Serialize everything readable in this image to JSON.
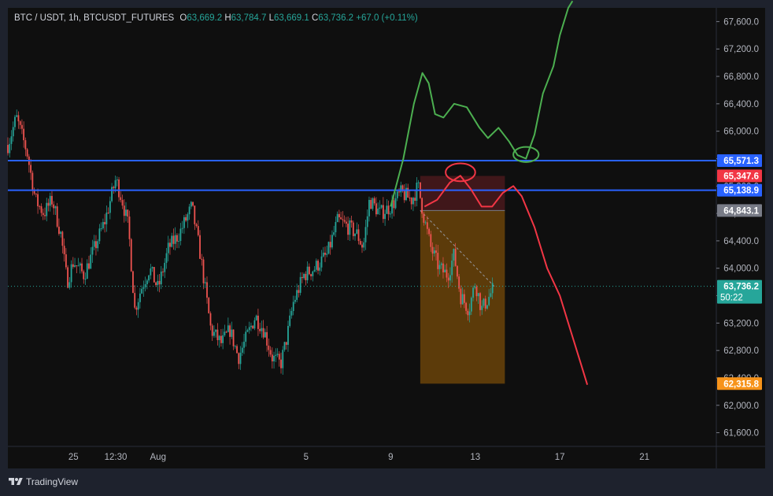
{
  "legend": {
    "symbol": "BTC / USDT, 1h, BTCUSDT_FUTURES",
    "open_label": "O",
    "open": "63,669.2",
    "high_label": "H",
    "high": "63,784.7",
    "low_label": "L",
    "low": "63,669.1",
    "close_label": "C",
    "close": "63,736.2",
    "change": "+67.0 (+0.11%)"
  },
  "brand": "TradingView",
  "colors": {
    "up": "#26a69a",
    "down": "#ef5350",
    "level_line": "#2962ff",
    "bull_path": "#4caf50",
    "bear_path": "#f23645",
    "target_zone": "#ff9800",
    "stop_zone": "#f23645"
  },
  "chart_data": {
    "type": "candlestick",
    "ylim": [
      61400,
      67800
    ],
    "y_ticks": [
      61600,
      62000,
      62400,
      62800,
      63200,
      63600,
      64000,
      64400,
      64800,
      65200,
      65600,
      66000,
      66400,
      66800,
      67200,
      67600
    ],
    "y_tick_labels": [
      "61,600.0",
      "62,000.0",
      "62,400.0",
      "62,800.0",
      "63,200.0",
      "63,600.0",
      "64,000.0",
      "64,400.0",
      "64,800.0",
      "65,200.0",
      "65,600.0",
      "66,000.0",
      "66,400.0",
      "66,800.0",
      "67,200.0",
      "67,600.0"
    ],
    "x_ticks": [
      {
        "label": "25",
        "day": 25
      },
      {
        "label": "12:30",
        "day": 27
      },
      {
        "label": "Aug",
        "day": 29
      },
      {
        "label": "5",
        "day": 36
      },
      {
        "label": "9",
        "day": 40
      },
      {
        "label": "13",
        "day": 44
      },
      {
        "label": "17",
        "day": 48
      },
      {
        "label": "21",
        "day": 52
      }
    ],
    "x_range_days": [
      21.9,
      55.4
    ],
    "price_path": [
      [
        21.9,
        65800
      ],
      [
        22.3,
        66200
      ],
      [
        22.8,
        65700
      ],
      [
        23.2,
        65000
      ],
      [
        23.6,
        64800
      ],
      [
        24.0,
        65000
      ],
      [
        24.4,
        64500
      ],
      [
        24.7,
        63800
      ],
      [
        25.0,
        64100
      ],
      [
        25.5,
        63900
      ],
      [
        26.0,
        64300
      ],
      [
        26.5,
        64700
      ],
      [
        27.0,
        65300
      ],
      [
        27.3,
        65000
      ],
      [
        27.6,
        64600
      ],
      [
        27.9,
        63400
      ],
      [
        28.2,
        63700
      ],
      [
        28.6,
        64000
      ],
      [
        29.0,
        63700
      ],
      [
        29.5,
        64300
      ],
      [
        30.0,
        64500
      ],
      [
        30.6,
        64900
      ],
      [
        31.0,
        64200
      ],
      [
        31.5,
        63100
      ],
      [
        32.0,
        62900
      ],
      [
        32.4,
        63100
      ],
      [
        32.8,
        62700
      ],
      [
        33.2,
        63000
      ],
      [
        33.6,
        63300
      ],
      [
        34.0,
        63100
      ],
      [
        34.4,
        62700
      ],
      [
        34.8,
        62600
      ],
      [
        35.1,
        63000
      ],
      [
        35.4,
        63500
      ],
      [
        35.9,
        63900
      ],
      [
        36.4,
        64000
      ],
      [
        37.0,
        64200
      ],
      [
        37.5,
        64700
      ],
      [
        38.0,
        64600
      ],
      [
        38.4,
        64500
      ],
      [
        38.7,
        64300
      ],
      [
        39.0,
        65000
      ],
      [
        39.5,
        64800
      ],
      [
        40.0,
        64900
      ],
      [
        40.5,
        65100
      ],
      [
        41.0,
        65000
      ],
      [
        41.3,
        65200
      ],
      [
        41.6,
        64700
      ],
      [
        41.9,
        64300
      ],
      [
        42.3,
        64000
      ],
      [
        42.7,
        63900
      ],
      [
        43.0,
        64200
      ],
      [
        43.3,
        63600
      ],
      [
        43.7,
        63400
      ],
      [
        44.0,
        63800
      ],
      [
        44.3,
        63400
      ],
      [
        44.6,
        63550
      ],
      [
        44.9,
        63736
      ]
    ],
    "horizontal_levels": [
      {
        "value": 65571.3,
        "label": "65,571.3"
      },
      {
        "value": 65138.9,
        "label": "65,138.9"
      }
    ],
    "price_badges": [
      {
        "value": 65571.3,
        "label": "65,571.3",
        "color": "#2962ff"
      },
      {
        "value": 65347.6,
        "label": "65,347.6",
        "color": "#f23645"
      },
      {
        "value": 65138.9,
        "label": "65,138.9",
        "color": "#2962ff"
      },
      {
        "value": 64843.1,
        "label": "64,843.1",
        "color": "#787b86"
      },
      {
        "value": 63736.2,
        "label": "63,736.2",
        "color": "#26a69a",
        "sub": "50:22"
      },
      {
        "value": 62315.8,
        "label": "62,315.8",
        "color": "#f7931a"
      }
    ],
    "short_position": {
      "day_start": 41.4,
      "day_end": 45.4,
      "entry": 64843.1,
      "stop": 65347.6,
      "target": 62315.8
    },
    "bull_path": [
      [
        40.0,
        64900
      ],
      [
        40.6,
        65600
      ],
      [
        41.1,
        66400
      ],
      [
        41.5,
        66850
      ],
      [
        41.8,
        66700
      ],
      [
        42.1,
        66250
      ],
      [
        42.5,
        66200
      ],
      [
        43.0,
        66400
      ],
      [
        43.6,
        66350
      ],
      [
        44.2,
        66050
      ],
      [
        44.6,
        65900
      ],
      [
        45.1,
        66050
      ],
      [
        45.6,
        65850
      ],
      [
        46.0,
        65650
      ],
      [
        46.4,
        65600
      ],
      [
        46.8,
        65950
      ],
      [
        47.2,
        66550
      ],
      [
        47.7,
        66950
      ],
      [
        48.0,
        67400
      ],
      [
        48.4,
        67800
      ],
      [
        48.6,
        67900
      ]
    ],
    "bear_path": [
      [
        41.6,
        64900
      ],
      [
        42.2,
        65000
      ],
      [
        42.8,
        65250
      ],
      [
        43.3,
        65350
      ],
      [
        43.8,
        65150
      ],
      [
        44.3,
        64900
      ],
      [
        44.8,
        64900
      ],
      [
        45.3,
        65100
      ],
      [
        45.8,
        65200
      ],
      [
        46.2,
        65050
      ],
      [
        46.8,
        64600
      ],
      [
        47.4,
        64000
      ],
      [
        48.0,
        63600
      ],
      [
        48.5,
        63100
      ],
      [
        49.0,
        62600
      ],
      [
        49.3,
        62300
      ]
    ],
    "ellipses": [
      {
        "day": 43.3,
        "value": 65400,
        "rx_days": 0.7,
        "ry_value": 130,
        "color": "#f23645"
      },
      {
        "day": 46.4,
        "value": 65660,
        "rx_days": 0.6,
        "ry_value": 110,
        "color": "#4caf50"
      }
    ]
  }
}
